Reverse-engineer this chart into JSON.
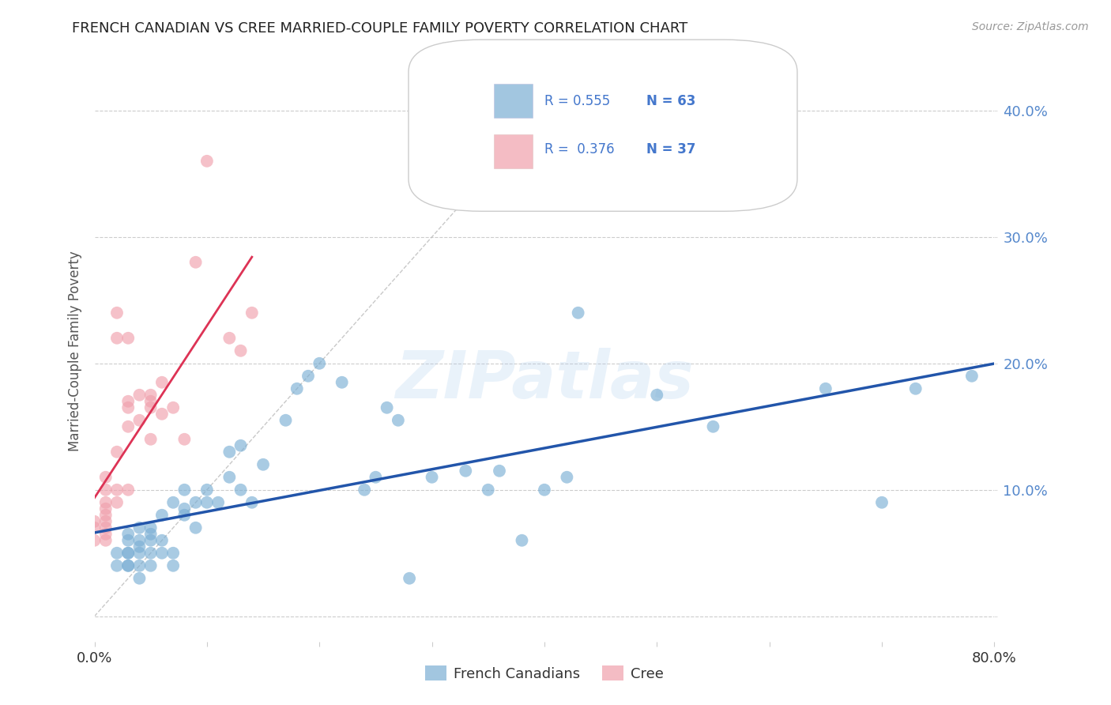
{
  "title": "FRENCH CANADIAN VS CREE MARRIED-COUPLE FAMILY POVERTY CORRELATION CHART",
  "source": "Source: ZipAtlas.com",
  "ylabel": "Married-Couple Family Poverty",
  "xlim": [
    0,
    0.8
  ],
  "ylim": [
    -0.02,
    0.44
  ],
  "xticks": [
    0.0,
    0.1,
    0.2,
    0.3,
    0.4,
    0.5,
    0.6,
    0.7,
    0.8
  ],
  "yticks": [
    0.0,
    0.1,
    0.2,
    0.3,
    0.4
  ],
  "background_color": "#ffffff",
  "grid_color": "#cccccc",
  "watermark_text": "ZIPatlas",
  "legend_R1": "0.555",
  "legend_N1": "63",
  "legend_R2": "0.376",
  "legend_N2": "37",
  "legend_text_color": "#4477cc",
  "blue_color": "#7bafd4",
  "pink_color": "#f0a0ac",
  "blue_line_color": "#2255aa",
  "pink_line_color": "#dd3355",
  "label1": "French Canadians",
  "label2": "Cree",
  "blue_x": [
    0.02,
    0.02,
    0.03,
    0.03,
    0.03,
    0.03,
    0.03,
    0.03,
    0.04,
    0.04,
    0.04,
    0.04,
    0.04,
    0.04,
    0.05,
    0.05,
    0.05,
    0.05,
    0.05,
    0.06,
    0.06,
    0.06,
    0.07,
    0.07,
    0.07,
    0.08,
    0.08,
    0.08,
    0.09,
    0.09,
    0.1,
    0.1,
    0.11,
    0.12,
    0.12,
    0.13,
    0.13,
    0.14,
    0.15,
    0.17,
    0.18,
    0.19,
    0.2,
    0.22,
    0.24,
    0.25,
    0.26,
    0.27,
    0.28,
    0.3,
    0.33,
    0.35,
    0.36,
    0.38,
    0.4,
    0.42,
    0.43,
    0.5,
    0.55,
    0.65,
    0.7,
    0.73,
    0.78
  ],
  "blue_y": [
    0.04,
    0.05,
    0.04,
    0.04,
    0.05,
    0.05,
    0.06,
    0.065,
    0.03,
    0.04,
    0.05,
    0.055,
    0.06,
    0.07,
    0.04,
    0.05,
    0.06,
    0.065,
    0.07,
    0.05,
    0.06,
    0.08,
    0.04,
    0.05,
    0.09,
    0.08,
    0.085,
    0.1,
    0.07,
    0.09,
    0.09,
    0.1,
    0.09,
    0.11,
    0.13,
    0.1,
    0.135,
    0.09,
    0.12,
    0.155,
    0.18,
    0.19,
    0.2,
    0.185,
    0.1,
    0.11,
    0.165,
    0.155,
    0.03,
    0.11,
    0.115,
    0.1,
    0.115,
    0.06,
    0.1,
    0.11,
    0.24,
    0.175,
    0.15,
    0.18,
    0.09,
    0.18,
    0.19
  ],
  "pink_x": [
    0.0,
    0.0,
    0.0,
    0.01,
    0.01,
    0.01,
    0.01,
    0.01,
    0.01,
    0.01,
    0.01,
    0.01,
    0.02,
    0.02,
    0.02,
    0.02,
    0.02,
    0.03,
    0.03,
    0.03,
    0.03,
    0.03,
    0.04,
    0.04,
    0.05,
    0.05,
    0.05,
    0.05,
    0.06,
    0.06,
    0.07,
    0.08,
    0.09,
    0.1,
    0.12,
    0.13,
    0.14
  ],
  "pink_y": [
    0.06,
    0.07,
    0.075,
    0.06,
    0.065,
    0.07,
    0.075,
    0.08,
    0.085,
    0.09,
    0.1,
    0.11,
    0.09,
    0.1,
    0.13,
    0.22,
    0.24,
    0.1,
    0.15,
    0.165,
    0.17,
    0.22,
    0.155,
    0.175,
    0.14,
    0.165,
    0.17,
    0.175,
    0.16,
    0.185,
    0.165,
    0.14,
    0.28,
    0.36,
    0.22,
    0.21,
    0.24
  ]
}
